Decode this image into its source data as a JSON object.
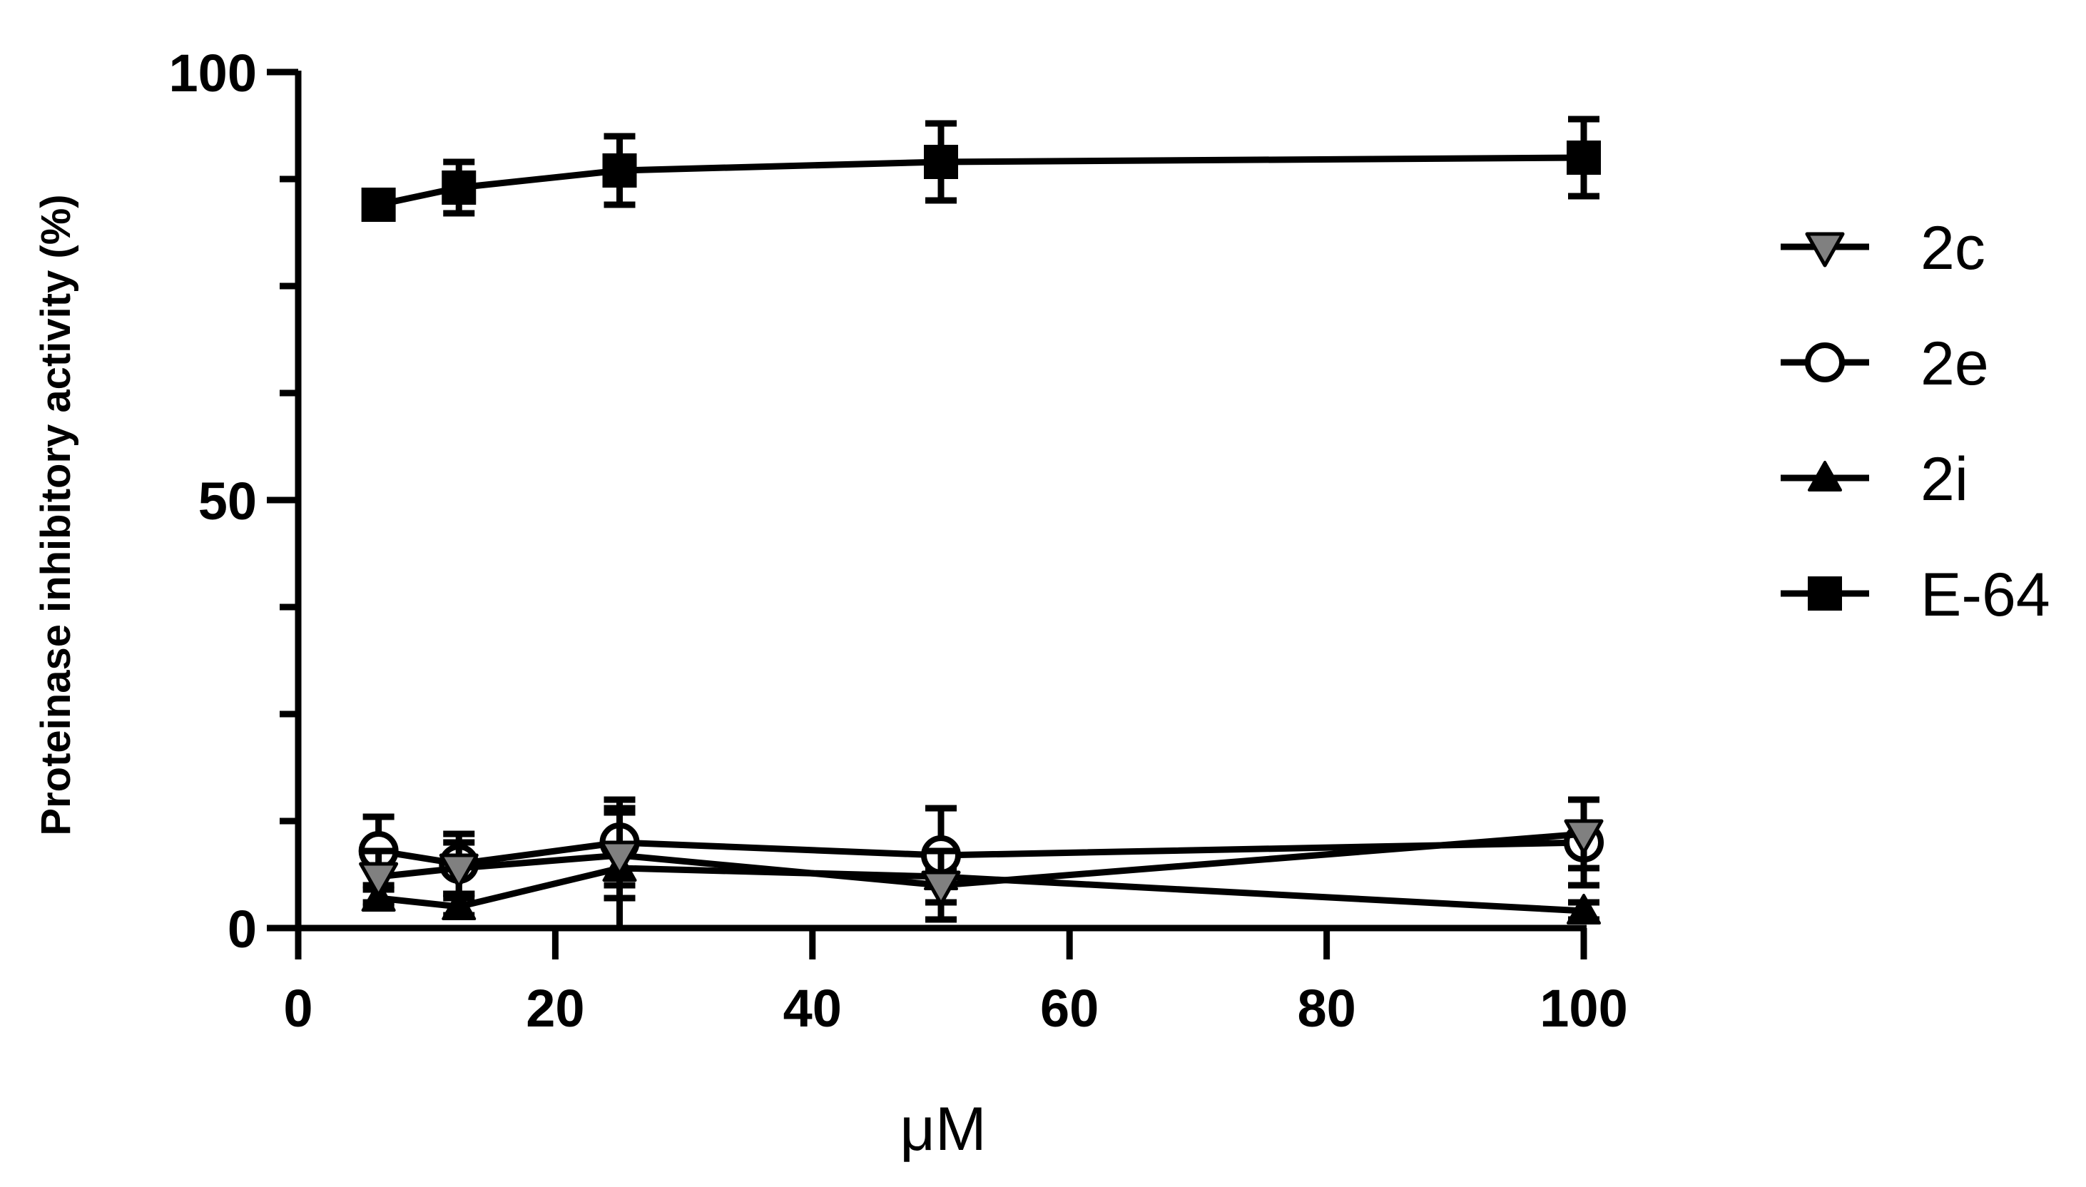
{
  "chart_data": {
    "type": "line",
    "title": "",
    "xlabel": "μM",
    "ylabel": "Proteinase inhibitory activity (%)",
    "xlim": [
      0,
      100
    ],
    "ylim": [
      0,
      100
    ],
    "xticks": [
      0,
      20,
      40,
      60,
      80,
      100
    ],
    "yticks": [
      0,
      50,
      100
    ],
    "grid": false,
    "legend_position": "right",
    "x": [
      6.25,
      12.5,
      25,
      50,
      100
    ],
    "series": [
      {
        "name": "2c",
        "marker": "triangle-down",
        "fill": "#808080",
        "values": [
          6,
          7,
          8.5,
          5,
          11
        ],
        "errors": [
          3,
          3,
          5,
          4,
          4
        ]
      },
      {
        "name": "2e",
        "marker": "circle-open",
        "fill": "#ffffff",
        "values": [
          9,
          7.5,
          10,
          8.5,
          10
        ],
        "errors": [
          4,
          3.5,
          5,
          5.5,
          5
        ]
      },
      {
        "name": "2i",
        "marker": "triangle-up",
        "fill": "#000000",
        "values": [
          3.5,
          2.5,
          7,
          6,
          2
        ],
        "errors": [
          1,
          1,
          7,
          1,
          1
        ]
      },
      {
        "name": "E-64",
        "marker": "square",
        "fill": "#000000",
        "values": [
          84.5,
          86.5,
          88.5,
          89.5,
          90
        ],
        "errors": [
          1,
          3,
          4,
          4.5,
          4.5
        ]
      }
    ]
  }
}
